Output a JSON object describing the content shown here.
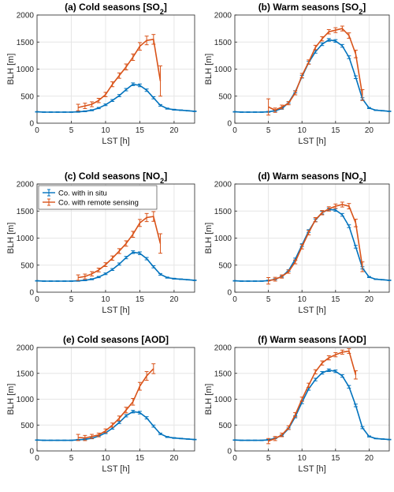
{
  "colors": {
    "in_situ": "#0072BD",
    "remote": "#D95319",
    "grid": "#e6e6e6",
    "axis": "#262626"
  },
  "legend": {
    "entries": [
      "Co. with in situ",
      "Co. with remote sensing"
    ],
    "placement": "top-left of panel (c)"
  },
  "chart_data": [
    {
      "type": "line",
      "title": "(a) Cold seasons [SO2]",
      "title_main": "(a) Cold seasons [SO",
      "title_sub": "2",
      "title_end": "]",
      "xlabel": "LST [h]",
      "ylabel": "BLH [m]",
      "xlim": [
        0,
        23
      ],
      "ylim": [
        0,
        2000
      ],
      "xticks": [
        "0",
        "5",
        "10",
        "15",
        "20"
      ],
      "yticks": [
        "0",
        "500",
        "1000",
        "1500",
        "2000"
      ],
      "grid": true,
      "series": [
        {
          "name": "Co. with in situ",
          "x": [
            0,
            1,
            2,
            3,
            4,
            5,
            6,
            7,
            8,
            9,
            10,
            11,
            12,
            13,
            14,
            15,
            16,
            17,
            18,
            19,
            20,
            21,
            22,
            23
          ],
          "values": [
            210,
            205,
            205,
            205,
            205,
            205,
            210,
            220,
            240,
            280,
            340,
            420,
            510,
            620,
            720,
            700,
            610,
            470,
            330,
            270,
            250,
            240,
            230,
            220
          ],
          "errors": [
            5,
            5,
            5,
            5,
            5,
            5,
            8,
            8,
            10,
            12,
            15,
            18,
            20,
            22,
            25,
            25,
            22,
            20,
            15,
            10,
            8,
            6,
            5,
            5
          ]
        },
        {
          "name": "Co. with remote sensing",
          "x": [
            6,
            7,
            8,
            9,
            10,
            11,
            12,
            13,
            14,
            15,
            16,
            17,
            18
          ],
          "values": [
            290,
            320,
            350,
            420,
            530,
            720,
            880,
            1040,
            1220,
            1420,
            1530,
            1550,
            780
          ],
          "errors": [
            60,
            50,
            45,
            40,
            40,
            45,
            50,
            55,
            60,
            70,
            80,
            90,
            280
          ]
        }
      ]
    },
    {
      "type": "line",
      "title": "(b) Warm seasons [SO2]",
      "title_main": "(b) Warm seasons [SO",
      "title_sub": "2",
      "title_end": "]",
      "xlabel": "LST [h]",
      "ylabel": "BLH [m]",
      "xlim": [
        0,
        23
      ],
      "ylim": [
        0,
        2000
      ],
      "xticks": [
        "0",
        "5",
        "10",
        "15",
        "20"
      ],
      "yticks": [
        "0",
        "500",
        "1000",
        "1500",
        "2000"
      ],
      "grid": true,
      "series": [
        {
          "name": "Co. with in situ",
          "x": [
            0,
            1,
            2,
            3,
            4,
            5,
            6,
            7,
            8,
            9,
            10,
            11,
            12,
            13,
            14,
            15,
            16,
            17,
            18,
            19,
            20,
            21,
            22,
            23
          ],
          "values": [
            210,
            205,
            205,
            205,
            205,
            210,
            230,
            270,
            380,
            580,
            860,
            1120,
            1320,
            1460,
            1540,
            1520,
            1430,
            1220,
            850,
            450,
            280,
            240,
            230,
            220
          ],
          "errors": [
            5,
            5,
            5,
            5,
            5,
            8,
            10,
            12,
            15,
            20,
            25,
            25,
            25,
            25,
            25,
            25,
            25,
            25,
            25,
            20,
            10,
            6,
            5,
            5
          ]
        },
        {
          "name": "Co. with remote sensing",
          "x": [
            5,
            6,
            7,
            8,
            9,
            10,
            11,
            12,
            13,
            14,
            15,
            16,
            17,
            18,
            19
          ],
          "values": [
            300,
            240,
            300,
            370,
            560,
            880,
            1130,
            1400,
            1560,
            1690,
            1720,
            1750,
            1620,
            1280,
            520
          ],
          "errors": [
            150,
            40,
            35,
            30,
            35,
            40,
            40,
            40,
            40,
            40,
            45,
            45,
            50,
            70,
            100
          ]
        }
      ]
    },
    {
      "type": "line",
      "title": "(c) Cold seasons [NO2]",
      "title_main": "(c) Cold seasons [NO",
      "title_sub": "2",
      "title_end": "]",
      "xlabel": "LST [h]",
      "ylabel": "BLH [m]",
      "xlim": [
        0,
        23
      ],
      "ylim": [
        0,
        2000
      ],
      "xticks": [
        "0",
        "5",
        "10",
        "15",
        "20"
      ],
      "yticks": [
        "0",
        "500",
        "1000",
        "1500",
        "2000"
      ],
      "grid": true,
      "series": [
        {
          "name": "Co. with in situ",
          "x": [
            0,
            1,
            2,
            3,
            4,
            5,
            6,
            7,
            8,
            9,
            10,
            11,
            12,
            13,
            14,
            15,
            16,
            17,
            18,
            19,
            20,
            21,
            22,
            23
          ],
          "values": [
            210,
            205,
            205,
            205,
            205,
            205,
            210,
            220,
            240,
            280,
            340,
            420,
            520,
            640,
            740,
            720,
            620,
            470,
            330,
            270,
            250,
            240,
            230,
            220
          ],
          "errors": [
            5,
            5,
            5,
            5,
            5,
            5,
            8,
            8,
            10,
            12,
            15,
            18,
            20,
            22,
            25,
            25,
            22,
            20,
            15,
            10,
            8,
            6,
            5,
            5
          ]
        },
        {
          "name": "Co. with remote sensing",
          "x": [
            6,
            7,
            8,
            9,
            10,
            11,
            12,
            13,
            14,
            15,
            16,
            17,
            18
          ],
          "values": [
            270,
            290,
            340,
            410,
            510,
            630,
            760,
            900,
            1070,
            1280,
            1380,
            1400,
            900
          ],
          "errors": [
            50,
            45,
            40,
            35,
            35,
            40,
            45,
            50,
            55,
            65,
            75,
            90,
            180
          ]
        }
      ]
    },
    {
      "type": "line",
      "title": "(d) Warm seasons [NO2]",
      "title_main": "(d) Warm seasons [NO",
      "title_sub": "2",
      "title_end": "]",
      "xlabel": "LST [h]",
      "ylabel": "BLH [m]",
      "xlim": [
        0,
        23
      ],
      "ylim": [
        0,
        2000
      ],
      "xticks": [
        "0",
        "5",
        "10",
        "15",
        "20"
      ],
      "yticks": [
        "0",
        "500",
        "1000",
        "1500",
        "2000"
      ],
      "grid": true,
      "series": [
        {
          "name": "Co. with in situ",
          "x": [
            0,
            1,
            2,
            3,
            4,
            5,
            6,
            7,
            8,
            9,
            10,
            11,
            12,
            13,
            14,
            15,
            16,
            17,
            18,
            19,
            20,
            21,
            22,
            23
          ],
          "values": [
            210,
            205,
            205,
            205,
            205,
            215,
            240,
            290,
            400,
            610,
            870,
            1130,
            1330,
            1470,
            1530,
            1520,
            1430,
            1220,
            840,
            450,
            280,
            240,
            230,
            220
          ],
          "errors": [
            5,
            5,
            5,
            5,
            5,
            8,
            10,
            12,
            15,
            20,
            25,
            25,
            25,
            25,
            25,
            25,
            25,
            25,
            25,
            20,
            10,
            6,
            5,
            5
          ]
        },
        {
          "name": "Co. with remote sensing",
          "x": [
            5,
            6,
            7,
            8,
            9,
            10,
            11,
            12,
            13,
            14,
            15,
            16,
            17,
            18,
            19
          ],
          "values": [
            210,
            240,
            290,
            380,
            560,
            840,
            1100,
            1340,
            1470,
            1540,
            1590,
            1620,
            1590,
            1280,
            470
          ],
          "errors": [
            60,
            35,
            30,
            30,
            35,
            40,
            40,
            40,
            40,
            40,
            40,
            45,
            50,
            70,
            90
          ]
        }
      ]
    },
    {
      "type": "line",
      "title": "(e) Cold seasons [AOD]",
      "title_main": "(e) Cold seasons [AOD]",
      "title_sub": "",
      "title_end": "",
      "xlabel": "LST [h]",
      "ylabel": "BLH [m]",
      "xlim": [
        0,
        23
      ],
      "ylim": [
        0,
        2000
      ],
      "xticks": [
        "0",
        "5",
        "10",
        "15",
        "20"
      ],
      "yticks": [
        "0",
        "500",
        "1000",
        "1500",
        "2000"
      ],
      "grid": true,
      "series": [
        {
          "name": "Co. with in situ",
          "x": [
            0,
            1,
            2,
            3,
            4,
            5,
            6,
            7,
            8,
            9,
            10,
            11,
            12,
            13,
            14,
            15,
            16,
            17,
            18,
            19,
            20,
            21,
            22,
            23
          ],
          "values": [
            210,
            205,
            205,
            205,
            205,
            205,
            215,
            225,
            245,
            285,
            350,
            440,
            550,
            680,
            760,
            740,
            640,
            480,
            330,
            270,
            250,
            240,
            230,
            220
          ],
          "errors": [
            5,
            5,
            5,
            5,
            5,
            5,
            8,
            8,
            10,
            12,
            15,
            18,
            20,
            22,
            25,
            25,
            22,
            20,
            15,
            10,
            8,
            6,
            5,
            5
          ]
        },
        {
          "name": "Co. with remote sensing",
          "x": [
            6,
            7,
            8,
            9,
            10,
            11,
            12,
            13,
            14,
            15,
            16,
            17
          ],
          "values": [
            260,
            250,
            280,
            310,
            390,
            500,
            630,
            790,
            950,
            1250,
            1450,
            1590
          ],
          "errors": [
            60,
            50,
            40,
            35,
            35,
            40,
            45,
            55,
            65,
            75,
            85,
            95
          ]
        }
      ]
    },
    {
      "type": "line",
      "title": "(f) Warm seasons [AOD]",
      "title_main": "(f) Warm seasons [AOD]",
      "title_sub": "",
      "title_end": "",
      "xlabel": "LST [h]",
      "ylabel": "BLH [m]",
      "xlim": [
        0,
        23
      ],
      "ylim": [
        0,
        2000
      ],
      "xticks": [
        "0",
        "5",
        "10",
        "15",
        "20"
      ],
      "yticks": [
        "0",
        "500",
        "1000",
        "1500",
        "2000"
      ],
      "grid": true,
      "series": [
        {
          "name": "Co. with in situ",
          "x": [
            0,
            1,
            2,
            3,
            4,
            5,
            6,
            7,
            8,
            9,
            10,
            11,
            12,
            13,
            14,
            15,
            16,
            17,
            18,
            19,
            20,
            21,
            22,
            23
          ],
          "values": [
            210,
            205,
            205,
            205,
            205,
            215,
            245,
            300,
            430,
            660,
            940,
            1200,
            1380,
            1510,
            1560,
            1540,
            1450,
            1240,
            880,
            450,
            280,
            240,
            230,
            220
          ],
          "errors": [
            5,
            5,
            5,
            5,
            5,
            8,
            10,
            12,
            15,
            20,
            25,
            25,
            25,
            25,
            25,
            25,
            25,
            25,
            25,
            20,
            10,
            6,
            5,
            5
          ]
        },
        {
          "name": "Co. with remote sensing",
          "x": [
            5,
            6,
            7,
            8,
            9,
            10,
            11,
            12,
            13,
            14,
            15,
            16,
            17,
            18
          ],
          "values": [
            190,
            240,
            310,
            450,
            700,
            1000,
            1270,
            1530,
            1700,
            1800,
            1860,
            1910,
            1930,
            1470
          ],
          "errors": [
            50,
            40,
            35,
            35,
            40,
            40,
            40,
            40,
            40,
            40,
            40,
            40,
            45,
            80
          ]
        }
      ]
    }
  ]
}
